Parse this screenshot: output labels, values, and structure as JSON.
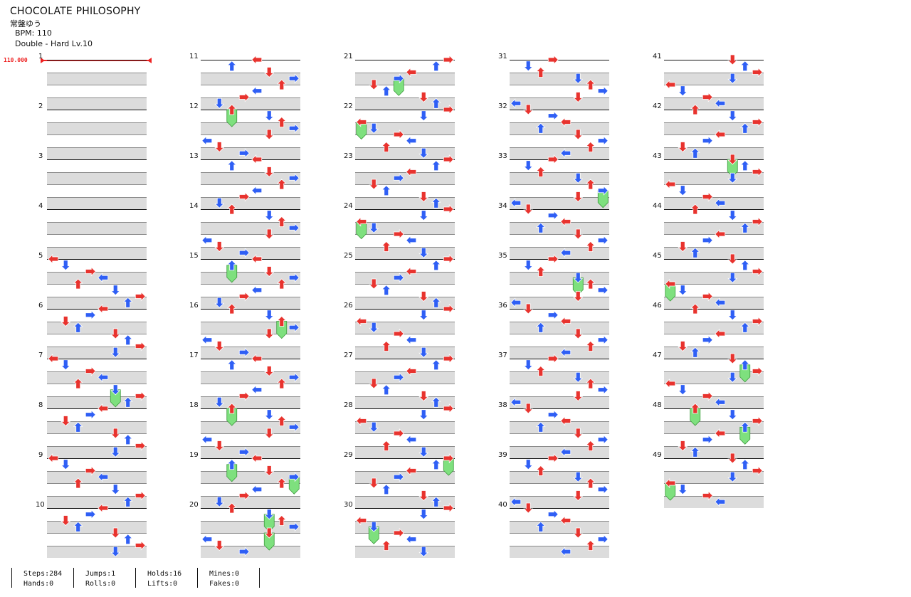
{
  "song": {
    "title": "CHOCOLATE PHILOSOPHY",
    "artist": "常盤ゆう",
    "bpm_label": "BPM: 110",
    "difficulty_label": "Double - Hard  Lv.10",
    "bpm_marker": "110.000"
  },
  "columns": [
    {
      "measures": [
        1,
        2,
        3,
        4,
        5,
        6,
        7,
        8,
        9,
        10
      ]
    },
    {
      "measures": [
        11,
        12,
        13,
        14,
        15,
        16,
        17,
        18,
        19,
        20
      ]
    },
    {
      "measures": [
        21,
        22,
        23,
        24,
        25,
        26,
        27,
        28,
        29,
        30
      ]
    },
    {
      "measures": [
        31,
        32,
        33,
        34,
        35,
        36,
        37,
        38,
        39,
        40
      ]
    },
    {
      "measures": [
        41,
        42,
        43,
        44,
        45,
        46,
        47,
        48,
        49
      ]
    }
  ],
  "stats": [
    {
      "line1": "Steps:284",
      "line2": "Hands:0"
    },
    {
      "line1": "Jumps:1",
      "line2": "Rolls:0"
    },
    {
      "line1": "Holds:16",
      "line2": "Lifts:0"
    },
    {
      "line1": "Mines:0",
      "line2": "Fakes:0"
    }
  ],
  "colors": {
    "quarter": "#e8332e",
    "eighth": "#2f5ff5",
    "hold": "#7ee07e",
    "band": "#dcdcdc"
  }
}
